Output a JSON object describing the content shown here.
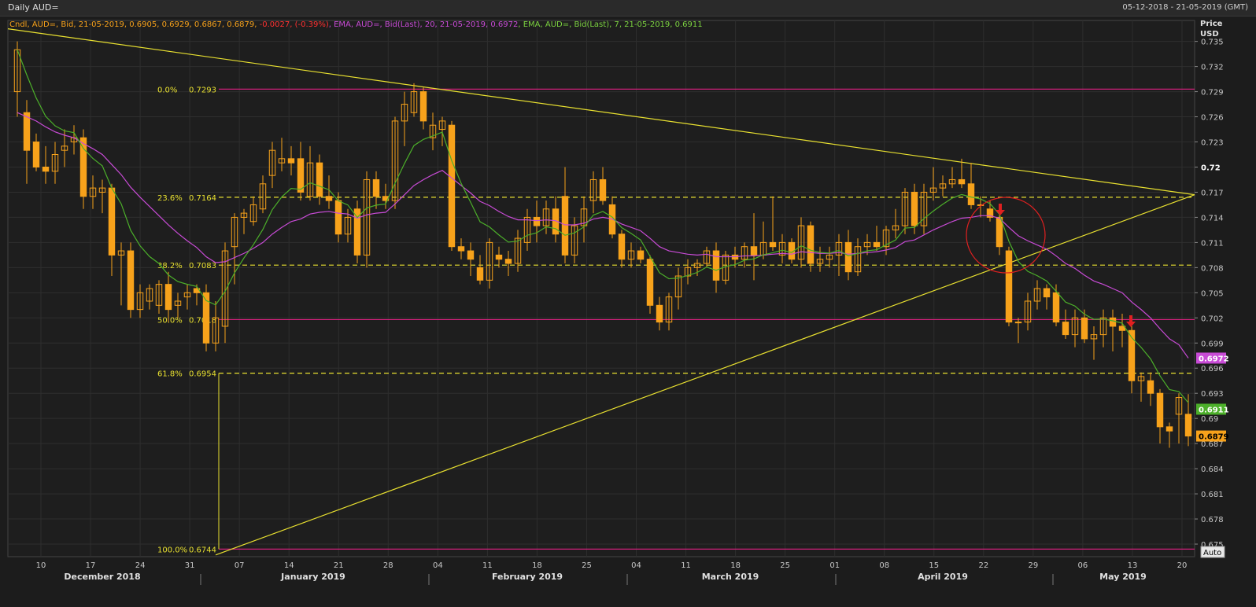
{
  "title": "Daily AUD=",
  "date_range": "05-12-2018 - 21-05-2019 (GMT)",
  "legend": {
    "cndl": "Cndl, AUD=, Bid, 21-05-2019, 0.6905, 0.6929, 0.6867, 0.6879, ",
    "change": "-0.0027, (-0.39%)",
    "ema20": ", EMA, AUD=, Bid(Last), 20, 21-05-2019, 0.6972",
    "ema7": ", EMA, AUD=, Bid(Last), 7, 21-05-2019, 0.6911"
  },
  "axis_title_1": "Price",
  "axis_title_2": "USD",
  "auto_label": "Auto",
  "colors": {
    "candle": "#f7a21b",
    "ema20": "#c84bd6",
    "ema7": "#4caf2a",
    "trend": "#e8e030",
    "fib_dashed": "#e8e030",
    "fib_solid": "#d0207a",
    "fib_text": "#e8e030",
    "annotation": "#e02020",
    "grid": "#2e2e2e"
  },
  "chart_data": {
    "type": "candlestick",
    "ylim": [
      0.6735,
      0.7375
    ],
    "yticks": [
      "0.735",
      "0.732",
      "0.729",
      "0.726",
      "0.723",
      "0.72",
      "0.717",
      "0.714",
      "0.711",
      "0.708",
      "0.705",
      "0.702",
      "0.699",
      "0.696",
      "0.693",
      "0.69",
      "0.687",
      "0.684",
      "0.681",
      "0.678",
      "0.675"
    ],
    "day_ticks": [
      "10",
      "17",
      "24",
      "31",
      "07",
      "14",
      "21",
      "28",
      "04",
      "11",
      "18",
      "25",
      "04",
      "11",
      "18",
      "25",
      "01",
      "08",
      "15",
      "22",
      "29",
      "06",
      "13",
      "20"
    ],
    "months": [
      "December 2018",
      "January 2019",
      "February 2019",
      "March 2019",
      "April 2019",
      "May 2019"
    ],
    "last_price_tags": [
      {
        "text": "0.6972",
        "value": 0.6972,
        "color": "#c84bd6"
      },
      {
        "text": "0.6911",
        "value": 0.6911,
        "color": "#4caf2a"
      },
      {
        "text": "0.6879",
        "value": 0.6879,
        "color": "#f7a21b"
      }
    ],
    "fib_levels": [
      {
        "pct": "0.0%",
        "price": "0.7293",
        "value": 0.7293,
        "style": "solid"
      },
      {
        "pct": "23.6%",
        "price": "0.7164",
        "value": 0.7164,
        "style": "dashed"
      },
      {
        "pct": "38.2%",
        "price": "0.7083",
        "value": 0.7083,
        "style": "dashed"
      },
      {
        "pct": "50.0%",
        "price": "0.7018",
        "value": 0.7018,
        "style": "solid"
      },
      {
        "pct": "61.8%",
        "price": "0.6954",
        "value": 0.6954,
        "style": "dashed"
      },
      {
        "pct": "100.0%",
        "price": "0.6744",
        "value": 0.6744,
        "style": "solid"
      }
    ],
    "trendlines": [
      {
        "from": [
          0,
          0.7365
        ],
        "to": [
          129,
          0.7167
        ]
      },
      {
        "from": [
          21,
          0.6737
        ],
        "to": [
          129,
          0.7167
        ]
      }
    ],
    "ohlc": [
      [
        0.729,
        0.735,
        0.726,
        0.734
      ],
      [
        0.7265,
        0.728,
        0.718,
        0.722
      ],
      [
        0.723,
        0.724,
        0.7195,
        0.72
      ],
      [
        0.72,
        0.7225,
        0.718,
        0.7195
      ],
      [
        0.7195,
        0.723,
        0.718,
        0.7215
      ],
      [
        0.722,
        0.7245,
        0.72,
        0.7225
      ],
      [
        0.723,
        0.725,
        0.7215,
        0.7235
      ],
      [
        0.7235,
        0.7245,
        0.715,
        0.7165
      ],
      [
        0.7165,
        0.719,
        0.715,
        0.7175
      ],
      [
        0.717,
        0.7185,
        0.7145,
        0.7175
      ],
      [
        0.7175,
        0.718,
        0.707,
        0.7095
      ],
      [
        0.7095,
        0.711,
        0.7035,
        0.71
      ],
      [
        0.71,
        0.711,
        0.702,
        0.703
      ],
      [
        0.703,
        0.706,
        0.702,
        0.705
      ],
      [
        0.704,
        0.706,
        0.703,
        0.7055
      ],
      [
        0.7035,
        0.7065,
        0.7025,
        0.706
      ],
      [
        0.706,
        0.7075,
        0.7015,
        0.703
      ],
      [
        0.7035,
        0.705,
        0.702,
        0.704
      ],
      [
        0.7045,
        0.706,
        0.703,
        0.705
      ],
      [
        0.7055,
        0.706,
        0.7035,
        0.705
      ],
      [
        0.705,
        0.706,
        0.698,
        0.699
      ],
      [
        0.699,
        0.704,
        0.698,
        0.702
      ],
      [
        0.701,
        0.711,
        0.699,
        0.71
      ],
      [
        0.7105,
        0.7145,
        0.706,
        0.714
      ],
      [
        0.714,
        0.715,
        0.712,
        0.7145
      ],
      [
        0.7135,
        0.7165,
        0.713,
        0.7155
      ],
      [
        0.715,
        0.719,
        0.7145,
        0.718
      ],
      [
        0.719,
        0.723,
        0.7175,
        0.722
      ],
      [
        0.7205,
        0.7235,
        0.7195,
        0.721
      ],
      [
        0.721,
        0.7225,
        0.719,
        0.7205
      ],
      [
        0.721,
        0.723,
        0.716,
        0.717
      ],
      [
        0.7165,
        0.7225,
        0.716,
        0.7205
      ],
      [
        0.7205,
        0.7215,
        0.7155,
        0.7165
      ],
      [
        0.7165,
        0.719,
        0.715,
        0.716
      ],
      [
        0.716,
        0.717,
        0.711,
        0.712
      ],
      [
        0.712,
        0.715,
        0.711,
        0.714
      ],
      [
        0.715,
        0.716,
        0.7085,
        0.7095
      ],
      [
        0.7095,
        0.7195,
        0.708,
        0.7185
      ],
      [
        0.7185,
        0.7195,
        0.715,
        0.7165
      ],
      [
        0.7165,
        0.718,
        0.715,
        0.716
      ],
      [
        0.716,
        0.726,
        0.715,
        0.7255
      ],
      [
        0.7255,
        0.729,
        0.7225,
        0.7275
      ],
      [
        0.7265,
        0.73,
        0.726,
        0.729
      ],
      [
        0.729,
        0.7295,
        0.7245,
        0.7255
      ],
      [
        0.7235,
        0.7265,
        0.722,
        0.725
      ],
      [
        0.7245,
        0.726,
        0.7225,
        0.7255
      ],
      [
        0.725,
        0.7255,
        0.71,
        0.7105
      ],
      [
        0.7105,
        0.7115,
        0.709,
        0.71
      ],
      [
        0.71,
        0.711,
        0.707,
        0.709
      ],
      [
        0.708,
        0.7095,
        0.706,
        0.7065
      ],
      [
        0.7065,
        0.7115,
        0.7055,
        0.711
      ],
      [
        0.7095,
        0.7105,
        0.708,
        0.709
      ],
      [
        0.709,
        0.71,
        0.707,
        0.7085
      ],
      [
        0.7085,
        0.7125,
        0.7075,
        0.7115
      ],
      [
        0.711,
        0.715,
        0.71,
        0.714
      ],
      [
        0.714,
        0.716,
        0.711,
        0.713
      ],
      [
        0.713,
        0.716,
        0.712,
        0.715
      ],
      [
        0.715,
        0.7165,
        0.711,
        0.712
      ],
      [
        0.7165,
        0.72,
        0.7085,
        0.7095
      ],
      [
        0.7095,
        0.714,
        0.7085,
        0.713
      ],
      [
        0.713,
        0.7165,
        0.711,
        0.715
      ],
      [
        0.716,
        0.7195,
        0.7145,
        0.7185
      ],
      [
        0.7185,
        0.72,
        0.7155,
        0.716
      ],
      [
        0.7155,
        0.7165,
        0.7115,
        0.712
      ],
      [
        0.712,
        0.7125,
        0.708,
        0.709
      ],
      [
        0.709,
        0.711,
        0.708,
        0.71
      ],
      [
        0.71,
        0.7105,
        0.7085,
        0.709
      ],
      [
        0.709,
        0.7095,
        0.7025,
        0.7035
      ],
      [
        0.7035,
        0.7045,
        0.7005,
        0.7015
      ],
      [
        0.7015,
        0.705,
        0.7005,
        0.7045
      ],
      [
        0.7045,
        0.708,
        0.703,
        0.707
      ],
      [
        0.707,
        0.709,
        0.706,
        0.708
      ],
      [
        0.708,
        0.709,
        0.707,
        0.7085
      ],
      [
        0.7085,
        0.7105,
        0.708,
        0.71
      ],
      [
        0.71,
        0.711,
        0.705,
        0.7065
      ],
      [
        0.7065,
        0.71,
        0.706,
        0.7095
      ],
      [
        0.7095,
        0.7105,
        0.708,
        0.709
      ],
      [
        0.709,
        0.711,
        0.708,
        0.7105
      ],
      [
        0.7105,
        0.7145,
        0.7065,
        0.7095
      ],
      [
        0.7095,
        0.7135,
        0.709,
        0.711
      ],
      [
        0.711,
        0.7165,
        0.71,
        0.7105
      ],
      [
        0.7095,
        0.712,
        0.7085,
        0.711
      ],
      [
        0.711,
        0.7115,
        0.7085,
        0.709
      ],
      [
        0.709,
        0.714,
        0.708,
        0.713
      ],
      [
        0.713,
        0.7135,
        0.7075,
        0.7085
      ],
      [
        0.7085,
        0.7105,
        0.7075,
        0.709
      ],
      [
        0.709,
        0.7105,
        0.708,
        0.7095
      ],
      [
        0.7095,
        0.712,
        0.707,
        0.711
      ],
      [
        0.711,
        0.7125,
        0.7065,
        0.7075
      ],
      [
        0.7075,
        0.7115,
        0.707,
        0.7105
      ],
      [
        0.7105,
        0.712,
        0.7095,
        0.711
      ],
      [
        0.711,
        0.713,
        0.71,
        0.7105
      ],
      [
        0.7105,
        0.713,
        0.7095,
        0.7125
      ],
      [
        0.7125,
        0.715,
        0.7115,
        0.713
      ],
      [
        0.713,
        0.7175,
        0.712,
        0.717
      ],
      [
        0.717,
        0.718,
        0.712,
        0.713
      ],
      [
        0.713,
        0.718,
        0.712,
        0.717
      ],
      [
        0.717,
        0.72,
        0.716,
        0.7175
      ],
      [
        0.7175,
        0.719,
        0.7165,
        0.718
      ],
      [
        0.718,
        0.72,
        0.7175,
        0.7185
      ],
      [
        0.7185,
        0.721,
        0.7175,
        0.718
      ],
      [
        0.718,
        0.7205,
        0.715,
        0.7155
      ],
      [
        0.7155,
        0.7165,
        0.714,
        0.7155
      ],
      [
        0.715,
        0.716,
        0.7135,
        0.714
      ],
      [
        0.714,
        0.7145,
        0.7095,
        0.7105
      ],
      [
        0.71,
        0.7105,
        0.701,
        0.7015
      ],
      [
        0.7015,
        0.702,
        0.699,
        0.7015
      ],
      [
        0.7015,
        0.705,
        0.7005,
        0.704
      ],
      [
        0.704,
        0.7065,
        0.703,
        0.7055
      ],
      [
        0.7055,
        0.706,
        0.703,
        0.7045
      ],
      [
        0.705,
        0.706,
        0.701,
        0.7015
      ],
      [
        0.7015,
        0.703,
        0.6995,
        0.7
      ],
      [
        0.7,
        0.703,
        0.6985,
        0.702
      ],
      [
        0.702,
        0.703,
        0.699,
        0.6995
      ],
      [
        0.6995,
        0.701,
        0.697,
        0.7
      ],
      [
        0.7,
        0.703,
        0.6985,
        0.702
      ],
      [
        0.702,
        0.703,
        0.698,
        0.701
      ],
      [
        0.701,
        0.7025,
        0.6985,
        0.7005
      ],
      [
        0.7005,
        0.701,
        0.693,
        0.6945
      ],
      [
        0.6945,
        0.6955,
        0.692,
        0.695
      ],
      [
        0.6945,
        0.6955,
        0.6915,
        0.693
      ],
      [
        0.693,
        0.6935,
        0.687,
        0.689
      ],
      [
        0.689,
        0.6895,
        0.6865,
        0.6885
      ],
      [
        0.6905,
        0.693,
        0.687,
        0.6925
      ],
      [
        0.6905,
        0.6929,
        0.6867,
        0.6879
      ]
    ],
    "ema20": [
      0.7265,
      0.726,
      0.7255,
      0.7248,
      0.7242,
      0.7238,
      0.7235,
      0.7228,
      0.7222,
      0.7215,
      0.7203,
      0.7191,
      0.7176,
      0.7164,
      0.7153,
      0.7142,
      0.7131,
      0.7121,
      0.7112,
      0.7104,
      0.7093,
      0.7086,
      0.7087,
      0.7092,
      0.7097,
      0.7103,
      0.711,
      0.712,
      0.7128,
      0.7135,
      0.7138,
      0.7144,
      0.7146,
      0.7147,
      0.7145,
      0.7144,
      0.7139,
      0.7143,
      0.7145,
      0.7146,
      0.7156,
      0.7167,
      0.7178,
      0.7185,
      0.7191,
      0.7196,
      0.7187,
      0.7178,
      0.7169,
      0.7159,
      0.7154,
      0.7147,
      0.7141,
      0.7137,
      0.7137,
      0.7136,
      0.7137,
      0.7136,
      0.7131,
      0.7131,
      0.7133,
      0.7138,
      0.714,
      0.7138,
      0.7132,
      0.7128,
      0.7124,
      0.7115,
      0.7105,
      0.71,
      0.7098,
      0.7096,
      0.7095,
      0.7096,
      0.7093,
      0.7093,
      0.7093,
      0.7094,
      0.7094,
      0.7095,
      0.7096,
      0.7097,
      0.7096,
      0.7099,
      0.7098,
      0.7097,
      0.7097,
      0.7098,
      0.7096,
      0.7097,
      0.7098,
      0.7099,
      0.7101,
      0.7104,
      0.7111,
      0.7113,
      0.7119,
      0.7125,
      0.713,
      0.7135,
      0.7139,
      0.714,
      0.7142,
      0.7142,
      0.7139,
      0.7128,
      0.7118,
      0.7112,
      0.7107,
      0.7102,
      0.7094,
      0.7085,
      0.7079,
      0.7071,
      0.7064,
      0.706,
      0.7055,
      0.705,
      0.7039,
      0.703,
      0.702,
      0.7007,
      0.6995,
      0.6988,
      0.6972
    ]
  }
}
